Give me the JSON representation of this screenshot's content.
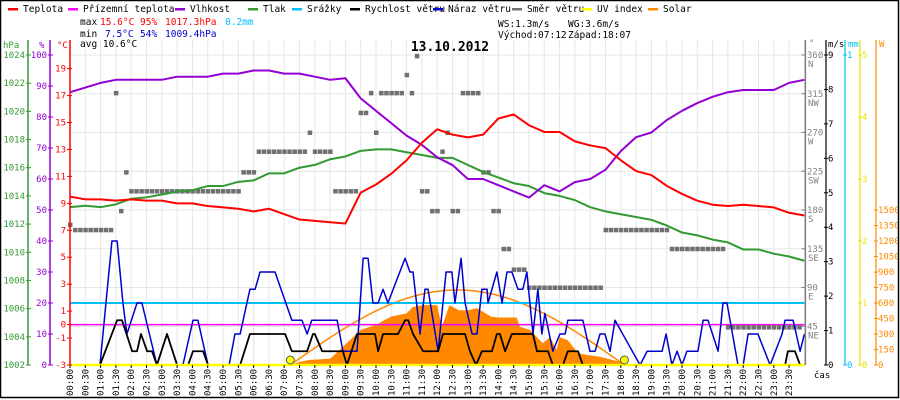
{
  "legend": [
    {
      "label": "Teplota",
      "color": "#ff0000"
    },
    {
      "label": "Přízemní teplota",
      "color": "#ff00ff"
    },
    {
      "label": "Vlhkost",
      "color": "#9400d3"
    },
    {
      "label": "Tlak",
      "color": "#339933"
    },
    {
      "label": "Srážky",
      "color": "#00bfff"
    },
    {
      "label": "Rychlost větru",
      "color": "#000000"
    },
    {
      "label": "Náraz větru",
      "color": "#0000cc"
    },
    {
      "label": "Směr větru",
      "color": "#707070"
    },
    {
      "label": "UV index",
      "color": "#ffff00"
    },
    {
      "label": "Solar",
      "color": "#ff8800"
    }
  ],
  "stats": {
    "max_label": "max",
    "max_temp": "15.6°C",
    "max_hum": "95%",
    "max_press": "1017.3hPa",
    "rain": "0.2mm",
    "min_label": "min",
    "min_temp": "7.5°C",
    "min_hum": "54%",
    "min_press": "1009.4hPa",
    "avg": "avg 10.6°C",
    "ws": "WS:1.3m/s",
    "wg": "WG:3.6m/s",
    "sunrise": "Východ:07:12",
    "sunset": "Západ:18:07"
  },
  "chart_data": {
    "type": "line",
    "title": "13.10.2012",
    "xlabel": "čas",
    "x_hours_step": 0.5,
    "x_tick_labels": [
      "00:00",
      "00:30",
      "01:00",
      "01:30",
      "02:00",
      "02:30",
      "03:00",
      "03:30",
      "04:00",
      "04:30",
      "05:00",
      "05:30",
      "06:00",
      "06:30",
      "07:00",
      "07:30",
      "08:00",
      "08:30",
      "09:00",
      "09:30",
      "10:00",
      "10:30",
      "11:00",
      "11:30",
      "12:00",
      "12:30",
      "13:00",
      "13:30",
      "14:00",
      "14:30",
      "15:00",
      "15:30",
      "16:00",
      "16:30",
      "17:00",
      "17:30",
      "18:00",
      "18:30",
      "19:00",
      "19:30",
      "20:00",
      "20:30",
      "21:00",
      "21:30",
      "22:00",
      "22:30",
      "23:00",
      "23:30"
    ],
    "axes": {
      "pressure": {
        "unit": "hPa",
        "range": [
          1002,
          1024
        ],
        "ticks": [
          1024,
          1022,
          1020,
          1018,
          1016,
          1014,
          1012,
          1010,
          1008,
          1006,
          1004,
          1002
        ]
      },
      "humidity": {
        "unit": "%",
        "range": [
          0,
          100
        ],
        "ticks": [
          100,
          90,
          80,
          70,
          60,
          50,
          40,
          30,
          20,
          10,
          0
        ]
      },
      "temperature": {
        "unit": "°C",
        "range": [
          -3,
          20
        ],
        "ticks": [
          19,
          17,
          15,
          13,
          11,
          9,
          7,
          5,
          3,
          1,
          0,
          -1,
          -3
        ]
      },
      "direction": {
        "unit": "°",
        "range": [
          0,
          360
        ],
        "ticks": [
          {
            "v": 360,
            "c": "N"
          },
          {
            "v": 315,
            "c": "NW"
          },
          {
            "v": 270,
            "c": "W"
          },
          {
            "v": 225,
            "c": "SW"
          },
          {
            "v": 180,
            "c": "S"
          },
          {
            "v": 135,
            "c": "SE"
          },
          {
            "v": 90,
            "c": "E"
          },
          {
            "v": 45,
            "c": "NE"
          }
        ]
      },
      "wind": {
        "unit": "m/s",
        "range": [
          0,
          9
        ],
        "ticks": [
          9,
          8,
          7,
          6,
          5,
          4,
          3,
          2,
          1,
          0
        ]
      },
      "rain": {
        "unit": "mm",
        "range": [
          0,
          1
        ],
        "ticks": [
          1,
          0
        ]
      },
      "uv": {
        "unit": "",
        "range": [
          0,
          5
        ],
        "ticks": [
          5,
          4,
          3,
          2,
          1,
          0
        ]
      },
      "solar": {
        "unit": "W",
        "range": [
          0,
          1500
        ],
        "ticks": [
          1500,
          1350,
          1200,
          1050,
          900,
          750,
          600,
          450,
          300,
          150,
          0
        ]
      }
    },
    "series": {
      "temperature": [
        9.5,
        9.3,
        9.3,
        9.2,
        9.3,
        9.2,
        9.2,
        9.0,
        9.0,
        8.8,
        8.7,
        8.6,
        8.4,
        8.6,
        8.2,
        7.8,
        7.7,
        7.6,
        7.5,
        9.8,
        10.4,
        11.2,
        12.2,
        13.5,
        14.5,
        14.1,
        13.9,
        14.1,
        15.3,
        15.6,
        14.8,
        14.3,
        14.3,
        13.6,
        13.3,
        13.1,
        12.2,
        11.4,
        11.1,
        10.3,
        9.7,
        9.2,
        8.9,
        8.8,
        8.9,
        8.8,
        8.7,
        8.3,
        8.1
      ],
      "humidity": [
        88,
        89.5,
        91,
        92,
        92,
        92,
        92,
        93,
        93,
        93,
        94,
        94,
        95,
        95,
        94,
        94,
        93,
        92,
        92.5,
        86,
        82,
        78,
        74,
        71,
        67,
        64.5,
        60,
        60,
        58,
        56,
        54,
        58,
        56,
        59,
        60,
        63,
        69,
        73.5,
        75,
        79,
        82,
        84.5,
        86.5,
        88,
        88.7,
        88.7,
        88.7,
        91,
        92
      ],
      "pressure": [
        1013.2,
        1013.3,
        1013.2,
        1013.4,
        1013.8,
        1013.9,
        1014.1,
        1014.3,
        1014.4,
        1014.7,
        1014.7,
        1015.0,
        1015.1,
        1015.6,
        1015.6,
        1016.0,
        1016.2,
        1016.6,
        1016.8,
        1017.2,
        1017.3,
        1017.3,
        1017.1,
        1016.9,
        1016.7,
        1016.7,
        1016.2,
        1015.7,
        1015.3,
        1014.9,
        1014.7,
        1014.2,
        1014.0,
        1013.7,
        1013.2,
        1012.9,
        1012.7,
        1012.5,
        1012.3,
        1011.9,
        1011.4,
        1011.2,
        1010.9,
        1010.7,
        1010.2,
        1010.2,
        1009.9,
        1009.7,
        1009.4
      ],
      "apparent_temperature_const": 0,
      "rain_mm_const": 0.2,
      "uv_const": 0,
      "wind_speed": [
        [
          0,
          0
        ],
        [
          0.98,
          0
        ],
        [
          1.54,
          1.3
        ],
        [
          1.7,
          1.3
        ],
        [
          2.03,
          0.4
        ],
        [
          2.19,
          0.4
        ],
        [
          2.32,
          0.9
        ],
        [
          2.52,
          0.4
        ],
        [
          2.68,
          0.4
        ],
        [
          2.84,
          0
        ],
        [
          3.17,
          0.9
        ],
        [
          3.5,
          0
        ],
        [
          3.86,
          0
        ],
        [
          4.02,
          0.4
        ],
        [
          4.35,
          0.4
        ],
        [
          4.51,
          0
        ],
        [
          5.56,
          0
        ],
        [
          5.88,
          0.9
        ],
        [
          7.03,
          0.9
        ],
        [
          7.25,
          0.4
        ],
        [
          7.75,
          0.4
        ],
        [
          7.94,
          0.9
        ],
        [
          8.0,
          0.9
        ],
        [
          8.24,
          0.4
        ],
        [
          8.92,
          0.4
        ],
        [
          9.05,
          0
        ],
        [
          9.38,
          0.9
        ],
        [
          9.97,
          0.9
        ],
        [
          10.07,
          0.4
        ],
        [
          10.23,
          0.9
        ],
        [
          10.72,
          0.9
        ],
        [
          10.95,
          1.3
        ],
        [
          11.05,
          1.3
        ],
        [
          11.21,
          0.9
        ],
        [
          11.54,
          0.4
        ],
        [
          12.03,
          0.4
        ],
        [
          12.19,
          0.9
        ],
        [
          12.91,
          0.9
        ],
        [
          13.07,
          0.4
        ],
        [
          13.27,
          0
        ],
        [
          13.46,
          0.4
        ],
        [
          13.79,
          0.4
        ],
        [
          13.95,
          0.9
        ],
        [
          14.05,
          0.9
        ],
        [
          14.22,
          0.4
        ],
        [
          14.44,
          0.9
        ],
        [
          15.13,
          0.9
        ],
        [
          15.26,
          0.4
        ],
        [
          15.62,
          0.4
        ],
        [
          15.78,
          0
        ],
        [
          16.11,
          0
        ],
        [
          16.27,
          0.4
        ],
        [
          16.6,
          0.4
        ],
        [
          16.76,
          0
        ],
        [
          23.37,
          0
        ],
        [
          23.46,
          0.4
        ],
        [
          23.69,
          0.4
        ],
        [
          23.86,
          0
        ],
        [
          24,
          0
        ]
      ],
      "wind_gust": [
        [
          0,
          0
        ],
        [
          0.98,
          0
        ],
        [
          1.37,
          3.6
        ],
        [
          1.54,
          3.6
        ],
        [
          1.73,
          1.8
        ],
        [
          1.86,
          0.9
        ],
        [
          2.19,
          1.8
        ],
        [
          2.35,
          1.8
        ],
        [
          2.84,
          0
        ],
        [
          3.17,
          0.9
        ],
        [
          3.5,
          0
        ],
        [
          3.69,
          0
        ],
        [
          4.02,
          1.3
        ],
        [
          4.18,
          1.3
        ],
        [
          4.51,
          0
        ],
        [
          5.2,
          0
        ],
        [
          5.39,
          0.9
        ],
        [
          5.56,
          0.9
        ],
        [
          5.88,
          2.2
        ],
        [
          6.05,
          2.2
        ],
        [
          6.21,
          2.7
        ],
        [
          6.7,
          2.7
        ],
        [
          7.25,
          1.3
        ],
        [
          7.58,
          1.3
        ],
        [
          7.75,
          0.9
        ],
        [
          7.9,
          1.3
        ],
        [
          8.73,
          1.3
        ],
        [
          8.92,
          0.4
        ],
        [
          9.38,
          0.4
        ],
        [
          9.58,
          3.1
        ],
        [
          9.74,
          3.1
        ],
        [
          9.9,
          1.8
        ],
        [
          10.07,
          1.8
        ],
        [
          10.23,
          2.2
        ],
        [
          10.39,
          1.8
        ],
        [
          10.95,
          3.1
        ],
        [
          11.11,
          2.7
        ],
        [
          11.21,
          2.7
        ],
        [
          11.44,
          0.9
        ],
        [
          11.6,
          2.2
        ],
        [
          11.7,
          2.2
        ],
        [
          12.03,
          0.4
        ],
        [
          12.29,
          2.7
        ],
        [
          12.48,
          2.7
        ],
        [
          12.58,
          1.8
        ],
        [
          12.78,
          3.1
        ],
        [
          12.91,
          1.8
        ],
        [
          13.14,
          0.9
        ],
        [
          13.3,
          0.9
        ],
        [
          13.46,
          2.2
        ],
        [
          13.63,
          2.2
        ],
        [
          13.66,
          1.8
        ],
        [
          13.95,
          2.7
        ],
        [
          14.12,
          1.8
        ],
        [
          14.28,
          2.7
        ],
        [
          14.44,
          2.7
        ],
        [
          14.64,
          2.2
        ],
        [
          14.8,
          2.2
        ],
        [
          14.93,
          2.7
        ],
        [
          15.13,
          0.9
        ],
        [
          15.29,
          2.2
        ],
        [
          15.42,
          0.9
        ],
        [
          15.52,
          1.5
        ],
        [
          15.78,
          0.4
        ],
        [
          16.01,
          0.9
        ],
        [
          16.18,
          0.9
        ],
        [
          16.27,
          1.3
        ],
        [
          16.76,
          1.3
        ],
        [
          16.99,
          0.4
        ],
        [
          17.16,
          0.4
        ],
        [
          17.32,
          0.9
        ],
        [
          17.48,
          0.9
        ],
        [
          17.65,
          0.4
        ],
        [
          17.81,
          1.3
        ],
        [
          18.63,
          0
        ],
        [
          18.86,
          0.4
        ],
        [
          19.35,
          0.4
        ],
        [
          19.48,
          0.9
        ],
        [
          19.67,
          0
        ],
        [
          19.84,
          0.4
        ],
        [
          20.0,
          0
        ],
        [
          20.16,
          0.4
        ],
        [
          20.52,
          0.4
        ],
        [
          20.69,
          1.3
        ],
        [
          20.85,
          1.3
        ],
        [
          21.18,
          0.4
        ],
        [
          21.34,
          1.8
        ],
        [
          21.47,
          1.8
        ],
        [
          21.83,
          0
        ],
        [
          22.0,
          0
        ],
        [
          22.16,
          0.9
        ],
        [
          22.48,
          0.9
        ],
        [
          22.88,
          0
        ],
        [
          23.27,
          0.9
        ],
        [
          23.37,
          1.3
        ],
        [
          23.63,
          1.3
        ],
        [
          23.86,
          0.4
        ],
        [
          24,
          0.9
        ]
      ],
      "wind_direction_runs": [
        {
          "from": "00:00",
          "to": "00:00",
          "deg": 163
        },
        {
          "from": "00:10",
          "to": "01:20",
          "deg": 157
        },
        {
          "from": "01:30",
          "to": "01:30",
          "deg": 316
        },
        {
          "from": "01:40",
          "to": "01:40",
          "deg": 179
        },
        {
          "from": "01:50",
          "to": "01:50",
          "deg": 224
        },
        {
          "from": "02:00",
          "to": "05:30",
          "deg": 202
        },
        {
          "from": "05:40",
          "to": "06:00",
          "deg": 224
        },
        {
          "from": "06:10",
          "to": "07:40",
          "deg": 248
        },
        {
          "from": "07:50",
          "to": "07:50",
          "deg": 270
        },
        {
          "from": "08:00",
          "to": "08:30",
          "deg": 248
        },
        {
          "from": "08:40",
          "to": "09:20",
          "deg": 202
        },
        {
          "from": "09:30",
          "to": "09:40",
          "deg": 293
        },
        {
          "from": "09:50",
          "to": "09:50",
          "deg": 316
        },
        {
          "from": "10:00",
          "to": "10:00",
          "deg": 270
        },
        {
          "from": "10:10",
          "to": "10:50",
          "deg": 316
        },
        {
          "from": "11:00",
          "to": "11:00",
          "deg": 337
        },
        {
          "from": "11:10",
          "to": "11:10",
          "deg": 316
        },
        {
          "from": "11:20",
          "to": "11:20",
          "deg": 359
        },
        {
          "from": "11:30",
          "to": "11:40",
          "deg": 202
        },
        {
          "from": "11:50",
          "to": "12:00",
          "deg": 179
        },
        {
          "from": "12:10",
          "to": "12:10",
          "deg": 248
        },
        {
          "from": "12:20",
          "to": "12:20",
          "deg": 270
        },
        {
          "from": "12:30",
          "to": "12:40",
          "deg": 179
        },
        {
          "from": "12:50",
          "to": "13:20",
          "deg": 316
        },
        {
          "from": "13:30",
          "to": "13:40",
          "deg": 224
        },
        {
          "from": "13:50",
          "to": "14:00",
          "deg": 179
        },
        {
          "from": "14:10",
          "to": "14:20",
          "deg": 135
        },
        {
          "from": "14:30",
          "to": "14:50",
          "deg": 111
        },
        {
          "from": "15:00",
          "to": "17:20",
          "deg": 90
        },
        {
          "from": "17:30",
          "to": "19:30",
          "deg": 157
        },
        {
          "from": "19:40",
          "to": "21:20",
          "deg": 135
        },
        {
          "from": "21:30",
          "to": "23:50",
          "deg": 44
        }
      ],
      "solar": [
        [
          7.2,
          0
        ],
        [
          7.5,
          30
        ],
        [
          7.84,
          50
        ],
        [
          8.5,
          60
        ],
        [
          9.0,
          200
        ],
        [
          9.5,
          340
        ],
        [
          10.0,
          390
        ],
        [
          10.5,
          470
        ],
        [
          11.0,
          500
        ],
        [
          11.2,
          560
        ],
        [
          11.5,
          580
        ],
        [
          12.0,
          580
        ],
        [
          12.15,
          370
        ],
        [
          12.4,
          580
        ],
        [
          12.7,
          530
        ],
        [
          13.0,
          530
        ],
        [
          13.3,
          550
        ],
        [
          13.75,
          470
        ],
        [
          14.0,
          460
        ],
        [
          14.6,
          460
        ],
        [
          14.7,
          370
        ],
        [
          15.03,
          340
        ],
        [
          15.45,
          210
        ],
        [
          15.69,
          270
        ],
        [
          15.9,
          145
        ],
        [
          16.0,
          270
        ],
        [
          16.27,
          240
        ],
        [
          16.6,
          115
        ],
        [
          16.83,
          100
        ],
        [
          17.32,
          80
        ],
        [
          17.97,
          30
        ],
        [
          18.3,
          0
        ]
      ],
      "solar_theoretical_peak_w": 726,
      "sunrise_h": 7.2,
      "sunset_h": 18.12
    }
  }
}
